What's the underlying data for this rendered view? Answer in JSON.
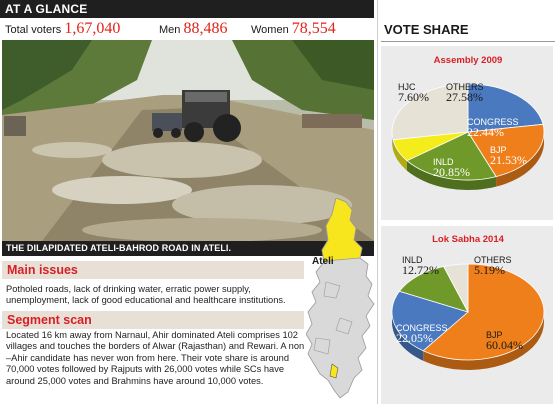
{
  "header": {
    "title": "AT A GLANCE"
  },
  "stats": {
    "total_label": "Total voters",
    "total_value": "1,67,040",
    "men_label": "Men",
    "men_value": "88,486",
    "women_label": "Women",
    "women_value": "78,554"
  },
  "photo": {
    "caption": "THE DILAPIDATED ATELI-BAHROD ROAD IN ATELI."
  },
  "main_issues": {
    "heading": "Main issues",
    "text": "Potholed roads, lack of drinking water, erratic power supply, unemployment, lack of good educational and healthcare institutions."
  },
  "segment_scan": {
    "heading": "Segment scan",
    "text": "Located 16 km away from Narnaul, Ahir dominated Ateli comprises 102 villages and touches the borders of Alwar (Rajasthan) and Rewari. A non –Ahir candidate has never won from here. Their vote share is around 70,000 votes followed by Rajputs with 26,000 votes while SCs have around 25,000 votes and Brahmins have around 10,000 votes."
  },
  "map": {
    "label": "Ateli",
    "state_color": "#f7e51e",
    "district_color": "#f7e51e"
  },
  "vote_share": {
    "heading": "VOTE SHARE"
  },
  "chart_data": [
    {
      "type": "pie",
      "title": "Assembly 2009",
      "series": [
        {
          "name": "CONGRESS",
          "value": 22.44,
          "label": "22.44%",
          "color": "#4a79bf"
        },
        {
          "name": "BJP",
          "value": 21.53,
          "label": "21.53%",
          "color": "#ef7f1a"
        },
        {
          "name": "INLD",
          "value": 20.85,
          "label": "20.85%",
          "color": "#6f9a2a"
        },
        {
          "name": "HJC",
          "value": 7.6,
          "label": "7.60%",
          "color": "#f5ec1c"
        },
        {
          "name": "OTHERS",
          "value": 27.58,
          "label": "27.58%",
          "color": "#e6e2d6"
        }
      ]
    },
    {
      "type": "pie",
      "title": "Lok Sabha 2014",
      "series": [
        {
          "name": "BJP",
          "value": 60.04,
          "label": "60.04%",
          "color": "#ef7f1a"
        },
        {
          "name": "CONGRESS",
          "value": 22.05,
          "label": "22.05%",
          "color": "#4a79bf"
        },
        {
          "name": "INLD",
          "value": 12.72,
          "label": "12.72%",
          "color": "#6f9a2a"
        },
        {
          "name": "OTHERS",
          "value": 5.19,
          "label": "5.19%",
          "color": "#e6e2d6"
        }
      ]
    }
  ]
}
